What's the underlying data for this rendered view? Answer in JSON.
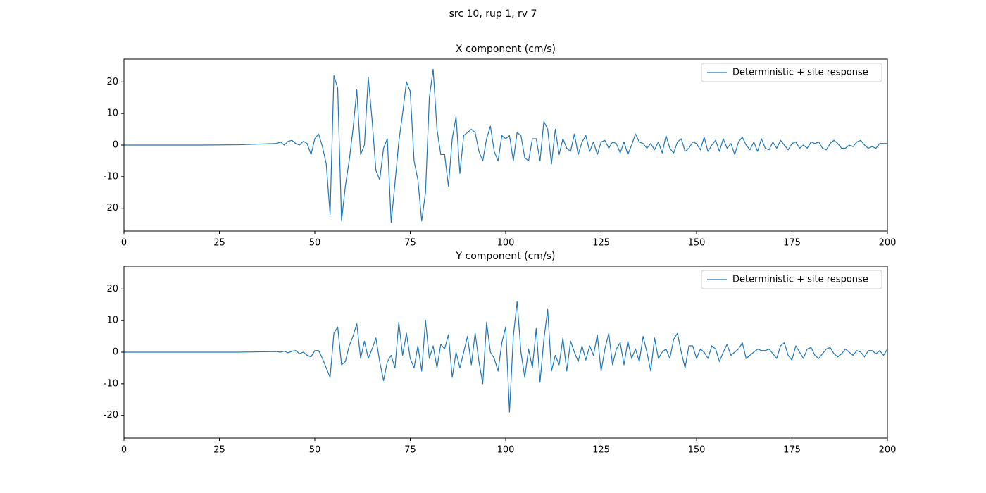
{
  "title": "src 10, rup 1, rv 7",
  "chart_data": [
    {
      "type": "line",
      "title": "X component (cm/s)",
      "legend": "upper right",
      "x": [
        0,
        10,
        20,
        30,
        35,
        40,
        41,
        42,
        43,
        44,
        45,
        46,
        47,
        48,
        49,
        50,
        51,
        52,
        53,
        54,
        55,
        56,
        57,
        58,
        59,
        60,
        61,
        62,
        63,
        64,
        65,
        66,
        67,
        68,
        69,
        70,
        71,
        72,
        73,
        74,
        75,
        76,
        77,
        78,
        79,
        80,
        81,
        82,
        83,
        84,
        85,
        86,
        87,
        88,
        89,
        90,
        91,
        92,
        93,
        94,
        95,
        96,
        97,
        98,
        99,
        100,
        101,
        102,
        103,
        104,
        105,
        106,
        107,
        108,
        109,
        110,
        111,
        112,
        113,
        114,
        115,
        116,
        117,
        118,
        119,
        120,
        121,
        122,
        123,
        124,
        125,
        126,
        127,
        128,
        129,
        130,
        131,
        132,
        133,
        134,
        135,
        136,
        137,
        138,
        139,
        140,
        141,
        142,
        143,
        144,
        145,
        146,
        147,
        148,
        149,
        150,
        151,
        152,
        153,
        154,
        155,
        156,
        157,
        158,
        159,
        160,
        161,
        162,
        163,
        164,
        165,
        166,
        167,
        168,
        169,
        170,
        171,
        172,
        173,
        174,
        175,
        176,
        177,
        178,
        179,
        180,
        181,
        182,
        183,
        184,
        185,
        186,
        187,
        188,
        189,
        190,
        191,
        192,
        193,
        194,
        195,
        196,
        197,
        198,
        199,
        200
      ],
      "series": [
        {
          "name": "Deterministic + site response",
          "color": "#1f77b4",
          "values": [
            0,
            0,
            0,
            0.1,
            0.3,
            0.5,
            1,
            0,
            1.2,
            1.5,
            0.5,
            0,
            1.2,
            0.5,
            -3,
            2,
            3.5,
            -0.5,
            -6,
            -22,
            22,
            18,
            -24,
            -13,
            -5,
            5,
            17.5,
            -3,
            0,
            21.5,
            8,
            -8,
            -11,
            -1,
            2,
            -24.5,
            -12,
            1,
            10,
            20,
            17,
            -5,
            -11,
            -24,
            -15,
            15,
            24,
            5,
            -3,
            -3,
            -13,
            2,
            9,
            -9,
            3,
            4,
            5,
            4,
            -2,
            -5,
            2,
            6,
            -2,
            -5,
            3,
            2,
            3,
            -5,
            4,
            3,
            -4,
            -5,
            2,
            2,
            -5,
            7.5,
            5,
            -6,
            5,
            -3,
            2,
            -1,
            -2,
            3.5,
            -3,
            1,
            3,
            -2,
            1,
            -3,
            1,
            1.5,
            -1,
            1,
            0.5,
            -2.5,
            1,
            -3,
            0,
            3.5,
            1,
            0.5,
            -1,
            0.5,
            -1.5,
            1,
            -2.5,
            3,
            -1,
            -2.5,
            1,
            2,
            -2,
            -1,
            1,
            0.5,
            -1.5,
            2.5,
            -2,
            0,
            1.5,
            -2,
            2,
            -1,
            0.5,
            -3,
            1,
            2.5,
            0,
            -1.5,
            1,
            -2,
            2,
            -1,
            -1.5,
            1,
            -1,
            1.5,
            0,
            -1.5,
            0.5,
            1,
            -1,
            0,
            -1,
            1,
            0.5,
            1,
            -1,
            -1.5,
            0.5,
            1.5,
            0.5,
            -1,
            -1,
            0,
            -0.5,
            1,
            1.5,
            0,
            -1,
            -0.5,
            -1,
            0.5,
            0.5,
            0.5
          ]
        }
      ],
      "xlim": [
        0,
        200
      ],
      "xticks": [
        0,
        25,
        50,
        75,
        100,
        125,
        150,
        175,
        200
      ],
      "ylim": [
        -27.2,
        27.2
      ],
      "yticks": [
        -20,
        -10,
        0,
        10,
        20
      ]
    },
    {
      "type": "line",
      "title": "Y component (cm/s)",
      "legend": "upper right",
      "x": [
        0,
        10,
        20,
        30,
        35,
        40,
        41,
        42,
        43,
        44,
        45,
        46,
        47,
        48,
        49,
        50,
        51,
        52,
        53,
        54,
        55,
        56,
        57,
        58,
        59,
        60,
        61,
        62,
        63,
        64,
        65,
        66,
        67,
        68,
        69,
        70,
        71,
        72,
        73,
        74,
        75,
        76,
        77,
        78,
        79,
        80,
        81,
        82,
        83,
        84,
        85,
        86,
        87,
        88,
        89,
        90,
        91,
        92,
        93,
        94,
        95,
        96,
        97,
        98,
        99,
        100,
        101,
        102,
        103,
        104,
        105,
        106,
        107,
        108,
        109,
        110,
        111,
        112,
        113,
        114,
        115,
        116,
        117,
        118,
        119,
        120,
        121,
        122,
        123,
        124,
        125,
        126,
        127,
        128,
        129,
        130,
        131,
        132,
        133,
        134,
        135,
        136,
        137,
        138,
        139,
        140,
        141,
        142,
        143,
        144,
        145,
        146,
        147,
        148,
        149,
        150,
        151,
        152,
        153,
        154,
        155,
        156,
        157,
        158,
        159,
        160,
        161,
        162,
        163,
        164,
        165,
        166,
        167,
        168,
        169,
        170,
        171,
        172,
        173,
        174,
        175,
        176,
        177,
        178,
        179,
        180,
        181,
        182,
        183,
        184,
        185,
        186,
        187,
        188,
        189,
        190,
        191,
        192,
        193,
        194,
        195,
        196,
        197,
        198,
        199,
        200
      ],
      "series": [
        {
          "name": "Deterministic + site response",
          "color": "#1f77b4",
          "values": [
            0,
            0,
            0,
            0,
            0.1,
            0.2,
            0,
            0.3,
            -0.2,
            0.3,
            0.5,
            -0.5,
            0,
            -1,
            -1.5,
            0.5,
            0.5,
            -2,
            -5,
            -8,
            6,
            8,
            -4,
            -3,
            2,
            5,
            9,
            -2,
            3.5,
            -2,
            1,
            4.5,
            -3,
            -9,
            -3,
            -1,
            -5,
            9.5,
            -1,
            6,
            -2,
            -5,
            2,
            -6,
            10,
            -2,
            2,
            -5,
            2.5,
            1,
            5.5,
            -8,
            0,
            -5,
            0,
            5,
            -4,
            6,
            -3,
            -10,
            9.5,
            0,
            -2,
            -6,
            3,
            8,
            -19,
            5,
            16,
            0,
            -8,
            1,
            -5,
            7.5,
            -9.5,
            4,
            13.5,
            -6,
            -1,
            -4,
            4.5,
            -6,
            3.5,
            0,
            -3,
            2,
            -2.5,
            2,
            -1,
            5.5,
            -6,
            1,
            6,
            -4,
            1,
            3,
            -4,
            3.5,
            -2,
            1,
            -3,
            5,
            0,
            -6,
            4.5,
            -2,
            0,
            1,
            -2,
            4,
            6,
            0,
            -5,
            2,
            2,
            -2,
            1,
            0,
            -2,
            2,
            1,
            -3,
            0,
            2.5,
            -1,
            0,
            1,
            3,
            -2,
            -1,
            0,
            1,
            0.5,
            0.5,
            1,
            -0.5,
            -2,
            2,
            3,
            -1,
            -2.5,
            2,
            0,
            -2,
            1,
            1.5,
            -1,
            -2,
            -0.5,
            1,
            1.5,
            -0.5,
            -1.5,
            -0.5,
            1,
            0,
            -1,
            0.5,
            0,
            -1.5,
            0.5,
            0.5,
            -0.5,
            0.5,
            -1,
            1
          ]
        }
      ],
      "xlim": [
        0,
        200
      ],
      "xticks": [
        0,
        25,
        50,
        75,
        100,
        125,
        150,
        175,
        200
      ],
      "ylim": [
        -27.2,
        27.2
      ],
      "yticks": [
        -20,
        -10,
        0,
        10,
        20
      ]
    }
  ]
}
